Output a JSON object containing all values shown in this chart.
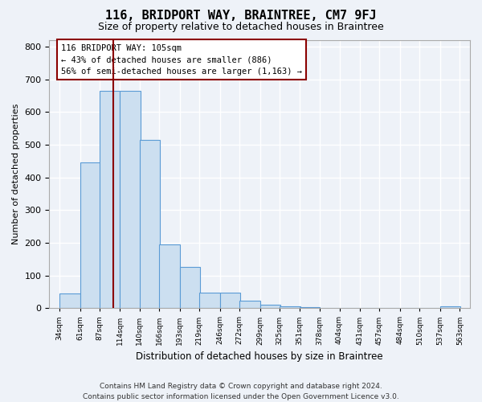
{
  "title": "116, BRIDPORT WAY, BRAINTREE, CM7 9FJ",
  "subtitle": "Size of property relative to detached houses in Braintree",
  "xlabel": "Distribution of detached houses by size in Braintree",
  "ylabel": "Number of detached properties",
  "bar_color": "#ccdff0",
  "bar_edge_color": "#5b9bd5",
  "background_color": "#eef2f8",
  "grid_color": "#ffffff",
  "annotation_text": "116 BRIDPORT WAY: 105sqm\n← 43% of detached houses are smaller (886)\n56% of semi-detached houses are larger (1,163) →",
  "red_line_x": 105,
  "bins": [
    34,
    61,
    87,
    114,
    140,
    166,
    193,
    219,
    246,
    272,
    299,
    325,
    351,
    378,
    404,
    431,
    457,
    484,
    510,
    537,
    563
  ],
  "bar_heights": [
    46,
    445,
    665,
    665,
    515,
    195,
    125,
    47,
    47,
    22,
    10,
    5,
    2,
    1,
    1,
    1,
    0,
    0,
    0,
    5
  ],
  "tick_labels": [
    "34sqm",
    "61sqm",
    "87sqm",
    "114sqm",
    "140sqm",
    "166sqm",
    "193sqm",
    "219sqm",
    "246sqm",
    "272sqm",
    "299sqm",
    "325sqm",
    "351sqm",
    "378sqm",
    "404sqm",
    "431sqm",
    "457sqm",
    "484sqm",
    "510sqm",
    "537sqm",
    "563sqm"
  ],
  "ylim": [
    0,
    820
  ],
  "yticks": [
    0,
    100,
    200,
    300,
    400,
    500,
    600,
    700,
    800
  ],
  "footer": "Contains HM Land Registry data © Crown copyright and database right 2024.\nContains public sector information licensed under the Open Government Licence v3.0.",
  "title_fontsize": 11,
  "subtitle_fontsize": 9,
  "annotation_fontsize": 7.5,
  "footer_fontsize": 6.5
}
